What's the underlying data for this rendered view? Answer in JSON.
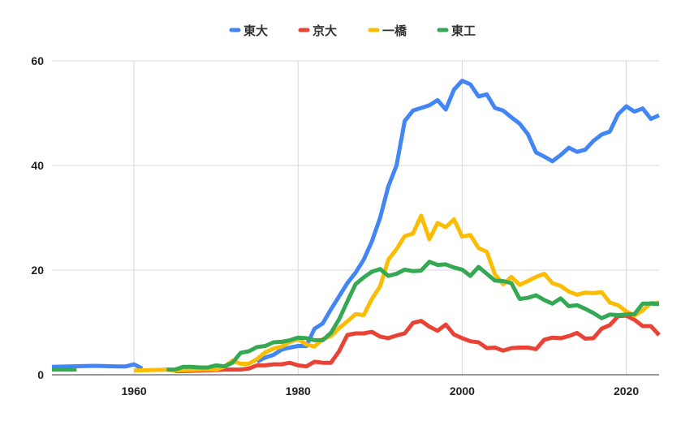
{
  "chart_data": {
    "type": "line",
    "title": "",
    "xlabel": "",
    "ylabel": "",
    "xlim": [
      1950,
      2024
    ],
    "ylim": [
      0,
      60
    ],
    "x_ticks": [
      1960,
      1980,
      2000,
      2020
    ],
    "y_ticks": [
      0,
      20,
      40,
      60
    ],
    "grid": true,
    "legend_position": "top-center",
    "series": [
      {
        "name": "東大",
        "color": "#4285F4",
        "points": [
          [
            1950,
            1.5
          ],
          [
            1952,
            1.6
          ],
          [
            1955,
            1.7
          ],
          [
            1958,
            1.6
          ],
          [
            1959,
            1.6
          ],
          [
            1960,
            2.0
          ],
          [
            1961,
            1.2
          ]
        ]
      },
      {
        "name": "東大",
        "color": "#4285F4",
        "points": [
          [
            1975,
            2.5
          ],
          [
            1976,
            3.3
          ],
          [
            1977,
            3.8
          ],
          [
            1978,
            4.8
          ],
          [
            1979,
            5.2
          ],
          [
            1980,
            5.5
          ],
          [
            1981,
            5.5
          ],
          [
            1982,
            8.8
          ],
          [
            1983,
            9.8
          ],
          [
            1984,
            12.5
          ],
          [
            1985,
            15.0
          ],
          [
            1986,
            17.5
          ],
          [
            1987,
            19.5
          ],
          [
            1988,
            22.0
          ],
          [
            1989,
            25.5
          ],
          [
            1990,
            30.0
          ],
          [
            1991,
            36.0
          ],
          [
            1992,
            40.0
          ],
          [
            1993,
            48.5
          ],
          [
            1994,
            50.5
          ],
          [
            1995,
            51.0
          ],
          [
            1996,
            51.5
          ],
          [
            1997,
            52.5
          ],
          [
            1998,
            50.7
          ],
          [
            1999,
            54.5
          ],
          [
            2000,
            56.2
          ],
          [
            2001,
            55.5
          ],
          [
            2002,
            53.2
          ],
          [
            2003,
            53.6
          ],
          [
            2004,
            51.0
          ],
          [
            2005,
            50.5
          ],
          [
            2006,
            49.2
          ],
          [
            2007,
            48.0
          ],
          [
            2008,
            46.0
          ],
          [
            2009,
            42.5
          ],
          [
            2010,
            41.7
          ],
          [
            2011,
            40.8
          ],
          [
            2012,
            42.0
          ],
          [
            2013,
            43.4
          ],
          [
            2014,
            42.6
          ],
          [
            2015,
            43.0
          ],
          [
            2016,
            44.7
          ],
          [
            2017,
            45.9
          ],
          [
            2018,
            46.5
          ],
          [
            2019,
            49.8
          ],
          [
            2020,
            51.3
          ],
          [
            2021,
            50.3
          ],
          [
            2022,
            50.9
          ],
          [
            2023,
            48.9
          ],
          [
            2024,
            49.6
          ]
        ]
      },
      {
        "name": "京大",
        "color": "#EA4335",
        "points": [
          [
            1965,
            0.7
          ],
          [
            1966,
            0.7
          ],
          [
            1970,
            0.9
          ],
          [
            1971,
            1.0
          ],
          [
            1972,
            1.0
          ],
          [
            1973,
            1.0
          ],
          [
            1974,
            1.2
          ],
          [
            1975,
            1.8
          ],
          [
            1976,
            1.8
          ],
          [
            1977,
            2.0
          ],
          [
            1978,
            2.0
          ],
          [
            1979,
            2.3
          ],
          [
            1980,
            1.8
          ],
          [
            1981,
            1.6
          ],
          [
            1982,
            2.5
          ],
          [
            1983,
            2.3
          ],
          [
            1984,
            2.3
          ],
          [
            1985,
            4.5
          ],
          [
            1986,
            7.6
          ],
          [
            1987,
            7.9
          ],
          [
            1988,
            7.9
          ],
          [
            1989,
            8.2
          ],
          [
            1990,
            7.3
          ],
          [
            1991,
            7.0
          ],
          [
            1992,
            7.5
          ],
          [
            1993,
            7.9
          ],
          [
            1994,
            9.9
          ],
          [
            1995,
            10.3
          ],
          [
            1996,
            9.2
          ],
          [
            1997,
            8.4
          ],
          [
            1998,
            9.6
          ],
          [
            1999,
            7.7
          ],
          [
            2000,
            7.0
          ],
          [
            2001,
            6.4
          ],
          [
            2002,
            6.2
          ],
          [
            2003,
            5.1
          ],
          [
            2004,
            5.2
          ],
          [
            2005,
            4.6
          ],
          [
            2006,
            5.1
          ],
          [
            2007,
            5.2
          ],
          [
            2008,
            5.2
          ],
          [
            2009,
            4.9
          ],
          [
            2010,
            6.7
          ],
          [
            2011,
            7.1
          ],
          [
            2012,
            7.0
          ],
          [
            2013,
            7.4
          ],
          [
            2014,
            8.0
          ],
          [
            2015,
            6.9
          ],
          [
            2016,
            7.0
          ],
          [
            2017,
            8.8
          ],
          [
            2018,
            9.5
          ],
          [
            2019,
            11.2
          ],
          [
            2020,
            11.3
          ],
          [
            2021,
            10.5
          ],
          [
            2022,
            9.3
          ],
          [
            2023,
            9.3
          ],
          [
            2024,
            7.6
          ]
        ]
      },
      {
        "name": "一橋",
        "color": "#FBBC04",
        "points": [
          [
            1960,
            0.8
          ],
          [
            1962,
            0.9
          ],
          [
            1964,
            1.0
          ],
          [
            1965,
            0.8
          ],
          [
            1968,
            1.0
          ],
          [
            1970,
            1.0
          ],
          [
            1971,
            1.5
          ],
          [
            1972,
            2.7
          ],
          [
            1973,
            2.1
          ],
          [
            1974,
            2.1
          ],
          [
            1975,
            3.0
          ],
          [
            1976,
            4.3
          ],
          [
            1977,
            5.0
          ],
          [
            1978,
            5.4
          ],
          [
            1979,
            6.3
          ],
          [
            1980,
            6.8
          ],
          [
            1981,
            5.8
          ],
          [
            1982,
            5.4
          ],
          [
            1983,
            6.8
          ],
          [
            1984,
            7.4
          ],
          [
            1985,
            8.9
          ],
          [
            1986,
            10.2
          ],
          [
            1987,
            11.6
          ],
          [
            1988,
            11.4
          ],
          [
            1989,
            14.5
          ],
          [
            1990,
            16.9
          ],
          [
            1991,
            22.0
          ],
          [
            1992,
            24.0
          ],
          [
            1993,
            26.5
          ],
          [
            1994,
            27.0
          ],
          [
            1995,
            30.4
          ],
          [
            1996,
            25.9
          ],
          [
            1997,
            29.0
          ],
          [
            1998,
            28.2
          ],
          [
            1999,
            29.7
          ],
          [
            2000,
            26.4
          ],
          [
            2001,
            26.7
          ],
          [
            2002,
            24.2
          ],
          [
            2003,
            23.5
          ],
          [
            2004,
            19.2
          ],
          [
            2005,
            17.3
          ],
          [
            2006,
            18.7
          ],
          [
            2007,
            17.2
          ],
          [
            2008,
            17.9
          ],
          [
            2009,
            18.7
          ],
          [
            2010,
            19.3
          ],
          [
            2011,
            17.5
          ],
          [
            2012,
            17.0
          ],
          [
            2013,
            15.9
          ],
          [
            2014,
            15.3
          ],
          [
            2015,
            15.7
          ],
          [
            2016,
            15.6
          ],
          [
            2017,
            15.8
          ],
          [
            2018,
            13.8
          ],
          [
            2019,
            13.3
          ],
          [
            2020,
            12.1
          ],
          [
            2021,
            11.3
          ],
          [
            2022,
            12.3
          ],
          [
            2023,
            13.7
          ],
          [
            2024,
            13.8
          ]
        ]
      },
      {
        "name": "東工",
        "color": "#34A853",
        "points": [
          [
            1950,
            1.0
          ],
          [
            1953,
            1.0
          ]
        ]
      },
      {
        "name": "東工",
        "color": "#34A853",
        "points": [
          [
            1964,
            1.0
          ],
          [
            1965,
            1.0
          ],
          [
            1966,
            1.5
          ],
          [
            1967,
            1.5
          ],
          [
            1968,
            1.4
          ],
          [
            1969,
            1.4
          ],
          [
            1970,
            1.8
          ],
          [
            1971,
            1.6
          ],
          [
            1972,
            2.3
          ],
          [
            1973,
            4.2
          ],
          [
            1974,
            4.5
          ],
          [
            1975,
            5.3
          ],
          [
            1976,
            5.5
          ],
          [
            1977,
            6.2
          ],
          [
            1978,
            6.3
          ],
          [
            1979,
            6.6
          ],
          [
            1980,
            7.1
          ],
          [
            1981,
            7.0
          ],
          [
            1982,
            6.6
          ],
          [
            1983,
            6.6
          ],
          [
            1984,
            8.0
          ],
          [
            1985,
            10.6
          ],
          [
            1986,
            14.0
          ],
          [
            1987,
            17.3
          ],
          [
            1988,
            18.6
          ],
          [
            1989,
            19.7
          ],
          [
            1990,
            20.2
          ],
          [
            1991,
            18.9
          ],
          [
            1992,
            19.3
          ],
          [
            1993,
            20.1
          ],
          [
            1994,
            19.8
          ],
          [
            1995,
            19.9
          ],
          [
            1996,
            21.6
          ],
          [
            1997,
            21.0
          ],
          [
            1998,
            21.1
          ],
          [
            1999,
            20.5
          ],
          [
            2000,
            20.1
          ],
          [
            2001,
            18.9
          ],
          [
            2002,
            20.6
          ],
          [
            2003,
            19.3
          ],
          [
            2004,
            18.0
          ],
          [
            2005,
            17.9
          ],
          [
            2006,
            17.5
          ],
          [
            2007,
            14.5
          ],
          [
            2008,
            14.7
          ],
          [
            2009,
            15.2
          ],
          [
            2010,
            14.3
          ],
          [
            2011,
            13.6
          ],
          [
            2012,
            14.6
          ],
          [
            2013,
            13.1
          ],
          [
            2014,
            13.3
          ],
          [
            2015,
            12.6
          ],
          [
            2016,
            11.8
          ],
          [
            2017,
            10.8
          ],
          [
            2018,
            11.5
          ],
          [
            2019,
            11.4
          ],
          [
            2020,
            11.5
          ],
          [
            2021,
            11.6
          ],
          [
            2022,
            13.6
          ],
          [
            2023,
            13.6
          ],
          [
            2024,
            13.5
          ]
        ]
      }
    ],
    "legend": [
      {
        "name": "東大",
        "color": "#4285F4"
      },
      {
        "name": "京大",
        "color": "#EA4335"
      },
      {
        "name": "一橋",
        "color": "#FBBC04"
      },
      {
        "name": "東工",
        "color": "#34A853"
      }
    ]
  }
}
